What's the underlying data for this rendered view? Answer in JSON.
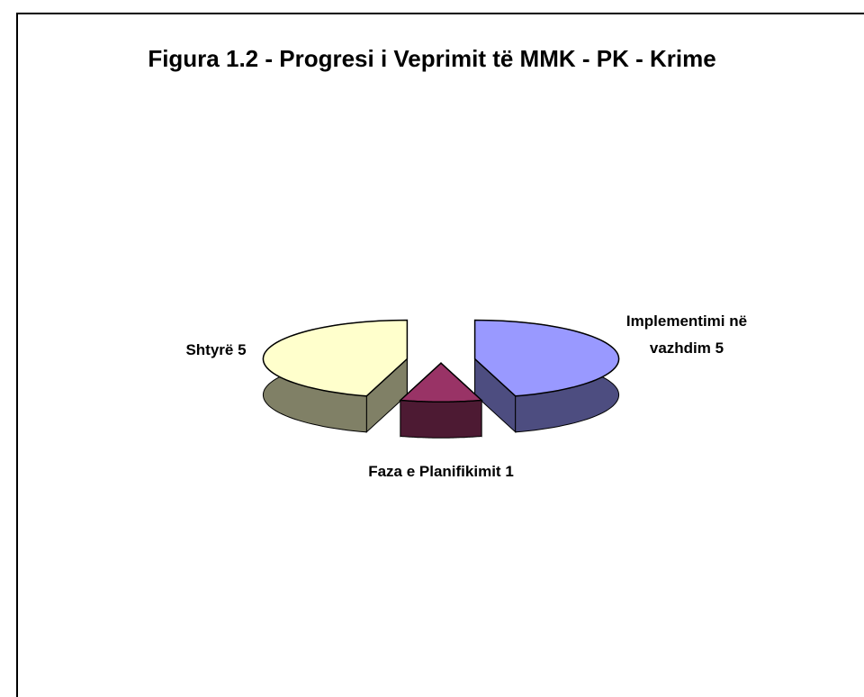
{
  "chart_data": {
    "type": "pie3d",
    "title": "Figura 1.2 - Progresi i Veprimit të MMK - PK - Krime",
    "categories": [
      "Implementimi në vazhdim",
      "Faza e Planifikimit",
      "Shtyrë"
    ],
    "values": [
      5,
      1,
      5
    ],
    "colors": [
      "#9999ff",
      "#993366",
      "#ffffcc"
    ]
  }
}
